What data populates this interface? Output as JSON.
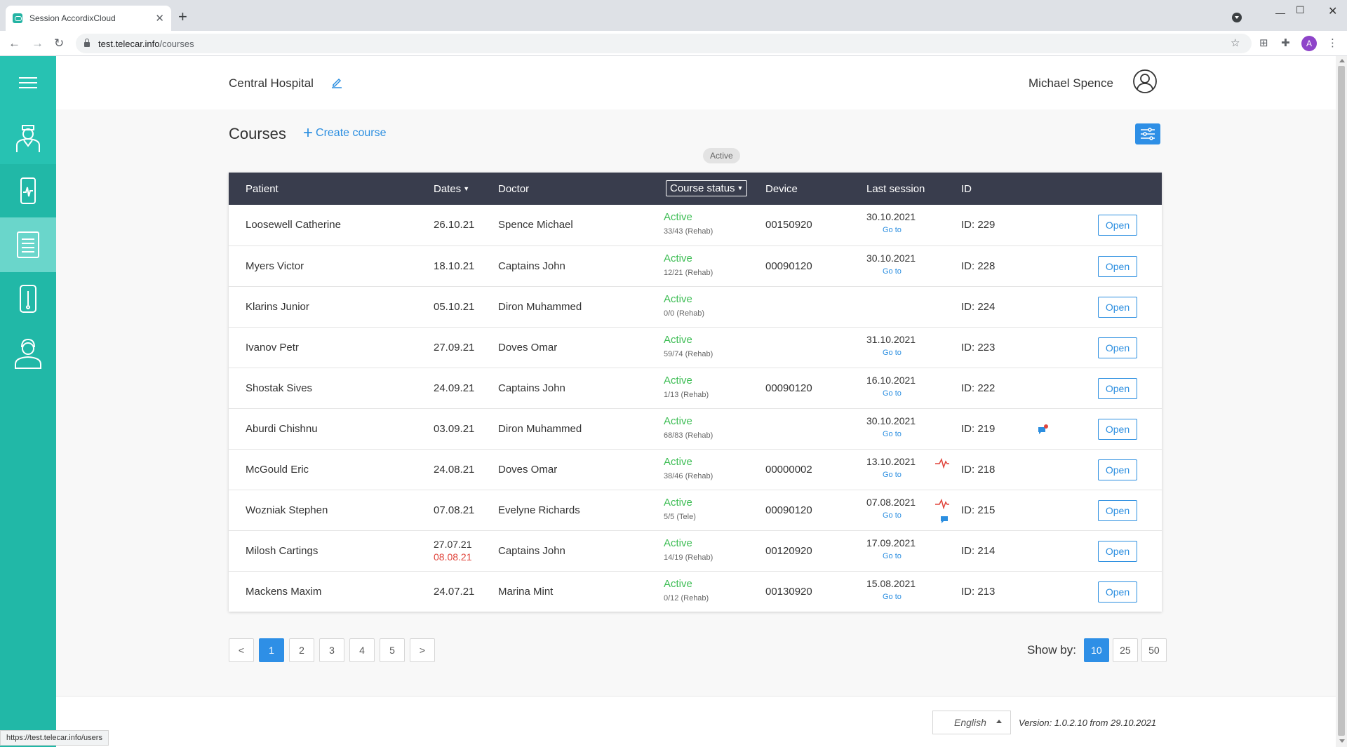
{
  "browser": {
    "tab_title": "Session AccordixCloud",
    "url_host": "test.telecar.info",
    "url_path": "/courses",
    "status_url": "https://test.telecar.info/users"
  },
  "header": {
    "hospital": "Central Hospital",
    "user_name": "Michael Spence"
  },
  "page": {
    "title": "Courses",
    "create_label": "Create course",
    "active_filter": "Active"
  },
  "table": {
    "columns": {
      "patient": "Patient",
      "dates": "Dates",
      "doctor": "Doctor",
      "status": "Course status",
      "device": "Device",
      "last": "Last session",
      "id": "ID"
    },
    "open_label": "Open",
    "goto_label": "Go to",
    "rows": [
      {
        "patient": "Loosewell Catherine",
        "dates": "26.10.21",
        "doctor": "Spence Michael",
        "status": "Active",
        "count": "33/43 (Rehab)",
        "device": "00150920",
        "last": "30.10.2021",
        "id": "ID: 229"
      },
      {
        "patient": "Myers Victor",
        "dates": "18.10.21",
        "doctor": "Captains John",
        "status": "Active",
        "count": "12/21 (Rehab)",
        "device": "00090120",
        "last": "30.10.2021",
        "id": "ID: 228"
      },
      {
        "patient": "Klarins Junior",
        "dates": "05.10.21",
        "doctor": "Diron Muhammed",
        "status": "Active",
        "count": "0/0 (Rehab)",
        "device": "",
        "last": "",
        "id": "ID: 224"
      },
      {
        "patient": "Ivanov Petr",
        "dates": "27.09.21",
        "doctor": "Doves Omar",
        "status": "Active",
        "count": "59/74 (Rehab)",
        "device": "",
        "last": "31.10.2021",
        "id": "ID: 223"
      },
      {
        "patient": "Shostak Sives",
        "dates": "24.09.21",
        "doctor": "Captains John",
        "status": "Active",
        "count": "1/13 (Rehab)",
        "device": "00090120",
        "last": "16.10.2021",
        "id": "ID: 222"
      },
      {
        "patient": "Aburdi Chishnu",
        "dates": "03.09.21",
        "doctor": "Diron Muhammed",
        "status": "Active",
        "count": "68/83 (Rehab)",
        "device": "",
        "last": "30.10.2021",
        "id": "ID: 219"
      },
      {
        "patient": "McGould Eric",
        "dates": "24.08.21",
        "doctor": "Doves Omar",
        "status": "Active",
        "count": "38/46 (Rehab)",
        "device": "00000002",
        "last": "13.10.2021",
        "id": "ID: 218"
      },
      {
        "patient": "Wozniak Stephen",
        "dates": "07.08.21",
        "doctor": "Evelyne Richards",
        "status": "Active",
        "count": "5/5 (Tele)",
        "device": "00090120",
        "last": "07.08.2021",
        "id": "ID: 215"
      },
      {
        "patient": "Milosh Cartings",
        "dates": "27.07.21",
        "dates_end": "08.08.21",
        "doctor": "Captains John",
        "status": "Active",
        "count": "14/19 (Rehab)",
        "device": "00120920",
        "last": "17.09.2021",
        "id": "ID: 214"
      },
      {
        "patient": "Mackens Maxim",
        "dates": "24.07.21",
        "doctor": "Marina Mint",
        "status": "Active",
        "count": "0/12 (Rehab)",
        "device": "00130920",
        "last": "15.08.2021",
        "id": "ID: 213"
      }
    ]
  },
  "pagination": {
    "pages": [
      "1",
      "2",
      "3",
      "4",
      "5"
    ],
    "current": "1",
    "prev": "<",
    "next": ">"
  },
  "show_by": {
    "label": "Show by:",
    "options": [
      "10",
      "25",
      "50"
    ],
    "selected": "10"
  },
  "footer": {
    "language": "English",
    "version": "Version: 1.0.2.10 from 29.10.2021"
  },
  "colors": {
    "sidebar": "#21b8a7",
    "accent": "#2e8fe6",
    "status_active": "#3dbd54",
    "table_header": "#393d4d",
    "end_date": "#e0453c"
  },
  "icons": {
    "sidebar": [
      "menu-icon",
      "doctor-icon",
      "device-icon",
      "courses-icon",
      "sensor-icon",
      "patient-icon"
    ]
  }
}
